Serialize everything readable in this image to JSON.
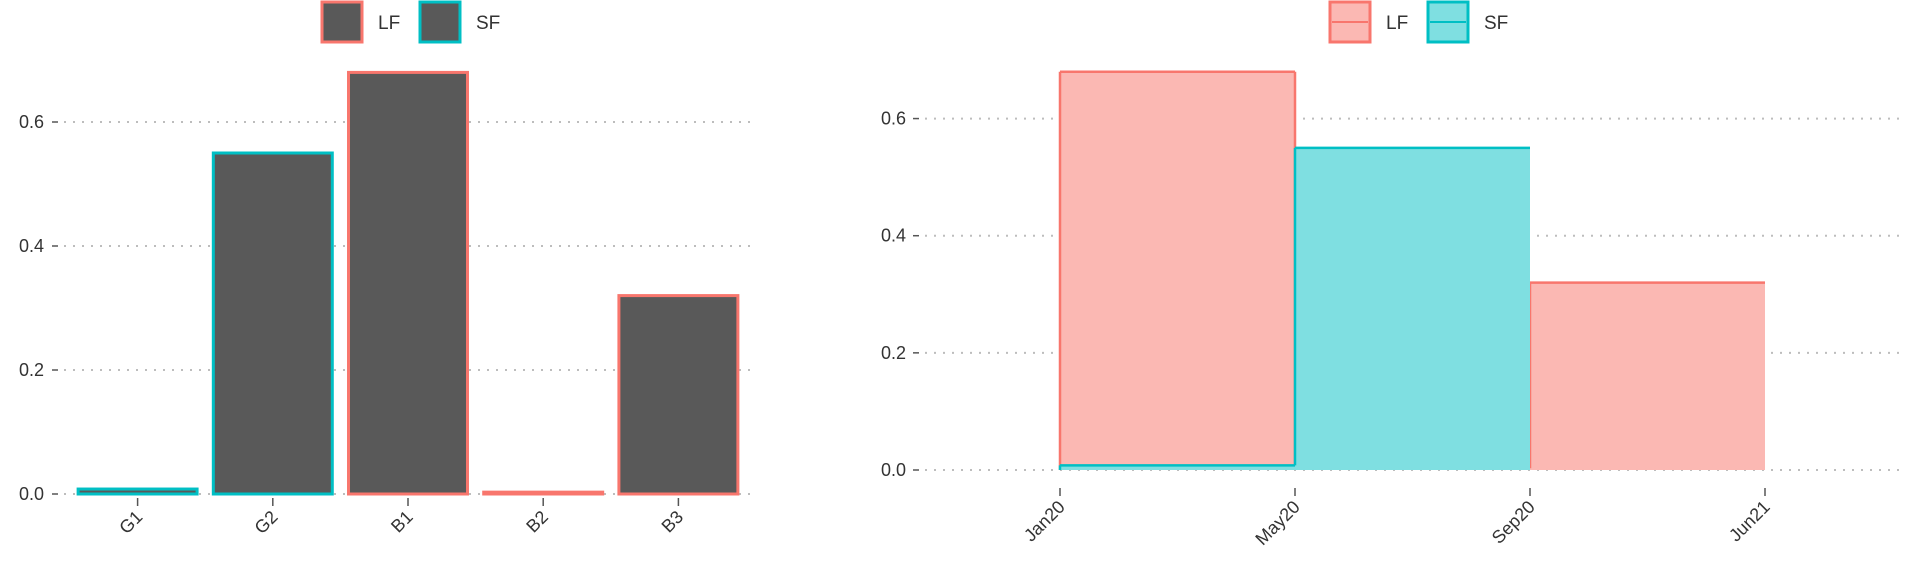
{
  "chart_data": [
    {
      "type": "bar",
      "title": "",
      "xlabel": "",
      "ylabel": "",
      "categories": [
        "G1",
        "G2",
        "B1",
        "B2",
        "B3"
      ],
      "values": [
        0.008,
        0.55,
        0.68,
        0.003,
        0.32
      ],
      "groups": [
        "SF",
        "SF",
        "LF",
        "LF",
        "LF"
      ],
      "ylim": [
        0,
        0.7
      ],
      "yticks": [
        0.0,
        0.2,
        0.4,
        0.6
      ],
      "ytick_labels": [
        "0.0",
        "0.2",
        "0.4",
        "0.6"
      ],
      "grid": "horizontal dotted",
      "legend": {
        "position": "top",
        "items": [
          {
            "label": "LF",
            "outline": "#F8766D",
            "fill": "#595959"
          },
          {
            "label": "SF",
            "outline": "#00BFC4",
            "fill": "#595959"
          }
        ]
      }
    },
    {
      "type": "area",
      "title": "",
      "xlabel": "",
      "ylabel": "",
      "x_ticks": [
        "Jan20",
        "May20",
        "Sep20",
        "Jun21"
      ],
      "ylim": [
        0,
        0.7
      ],
      "yticks": [
        0.0,
        0.2,
        0.4,
        0.6
      ],
      "ytick_labels": [
        "0.0",
        "0.2",
        "0.4",
        "0.6"
      ],
      "grid": "horizontal dotted",
      "series": [
        {
          "name": "LF",
          "color": "#F8766D",
          "fill": "#FBB8B3",
          "steps": [
            {
              "from": "Jan20",
              "to": "May20",
              "value": 0.68
            },
            {
              "from": "May20",
              "to": "Sep20",
              "value": 0.003
            },
            {
              "from": "Sep20",
              "to": "Jun21",
              "value": 0.32
            }
          ]
        },
        {
          "name": "SF",
          "color": "#00BFC4",
          "fill": "#7FDFE1",
          "steps": [
            {
              "from": "Jan20",
              "to": "May20",
              "value": 0.008
            },
            {
              "from": "May20",
              "to": "Sep20",
              "value": 0.55
            }
          ]
        }
      ],
      "legend": {
        "position": "top",
        "items": [
          {
            "label": "LF",
            "outline": "#F8766D",
            "fill": "#FBB8B3"
          },
          {
            "label": "SF",
            "outline": "#00BFC4",
            "fill": "#7FDFE1"
          }
        ]
      }
    }
  ]
}
